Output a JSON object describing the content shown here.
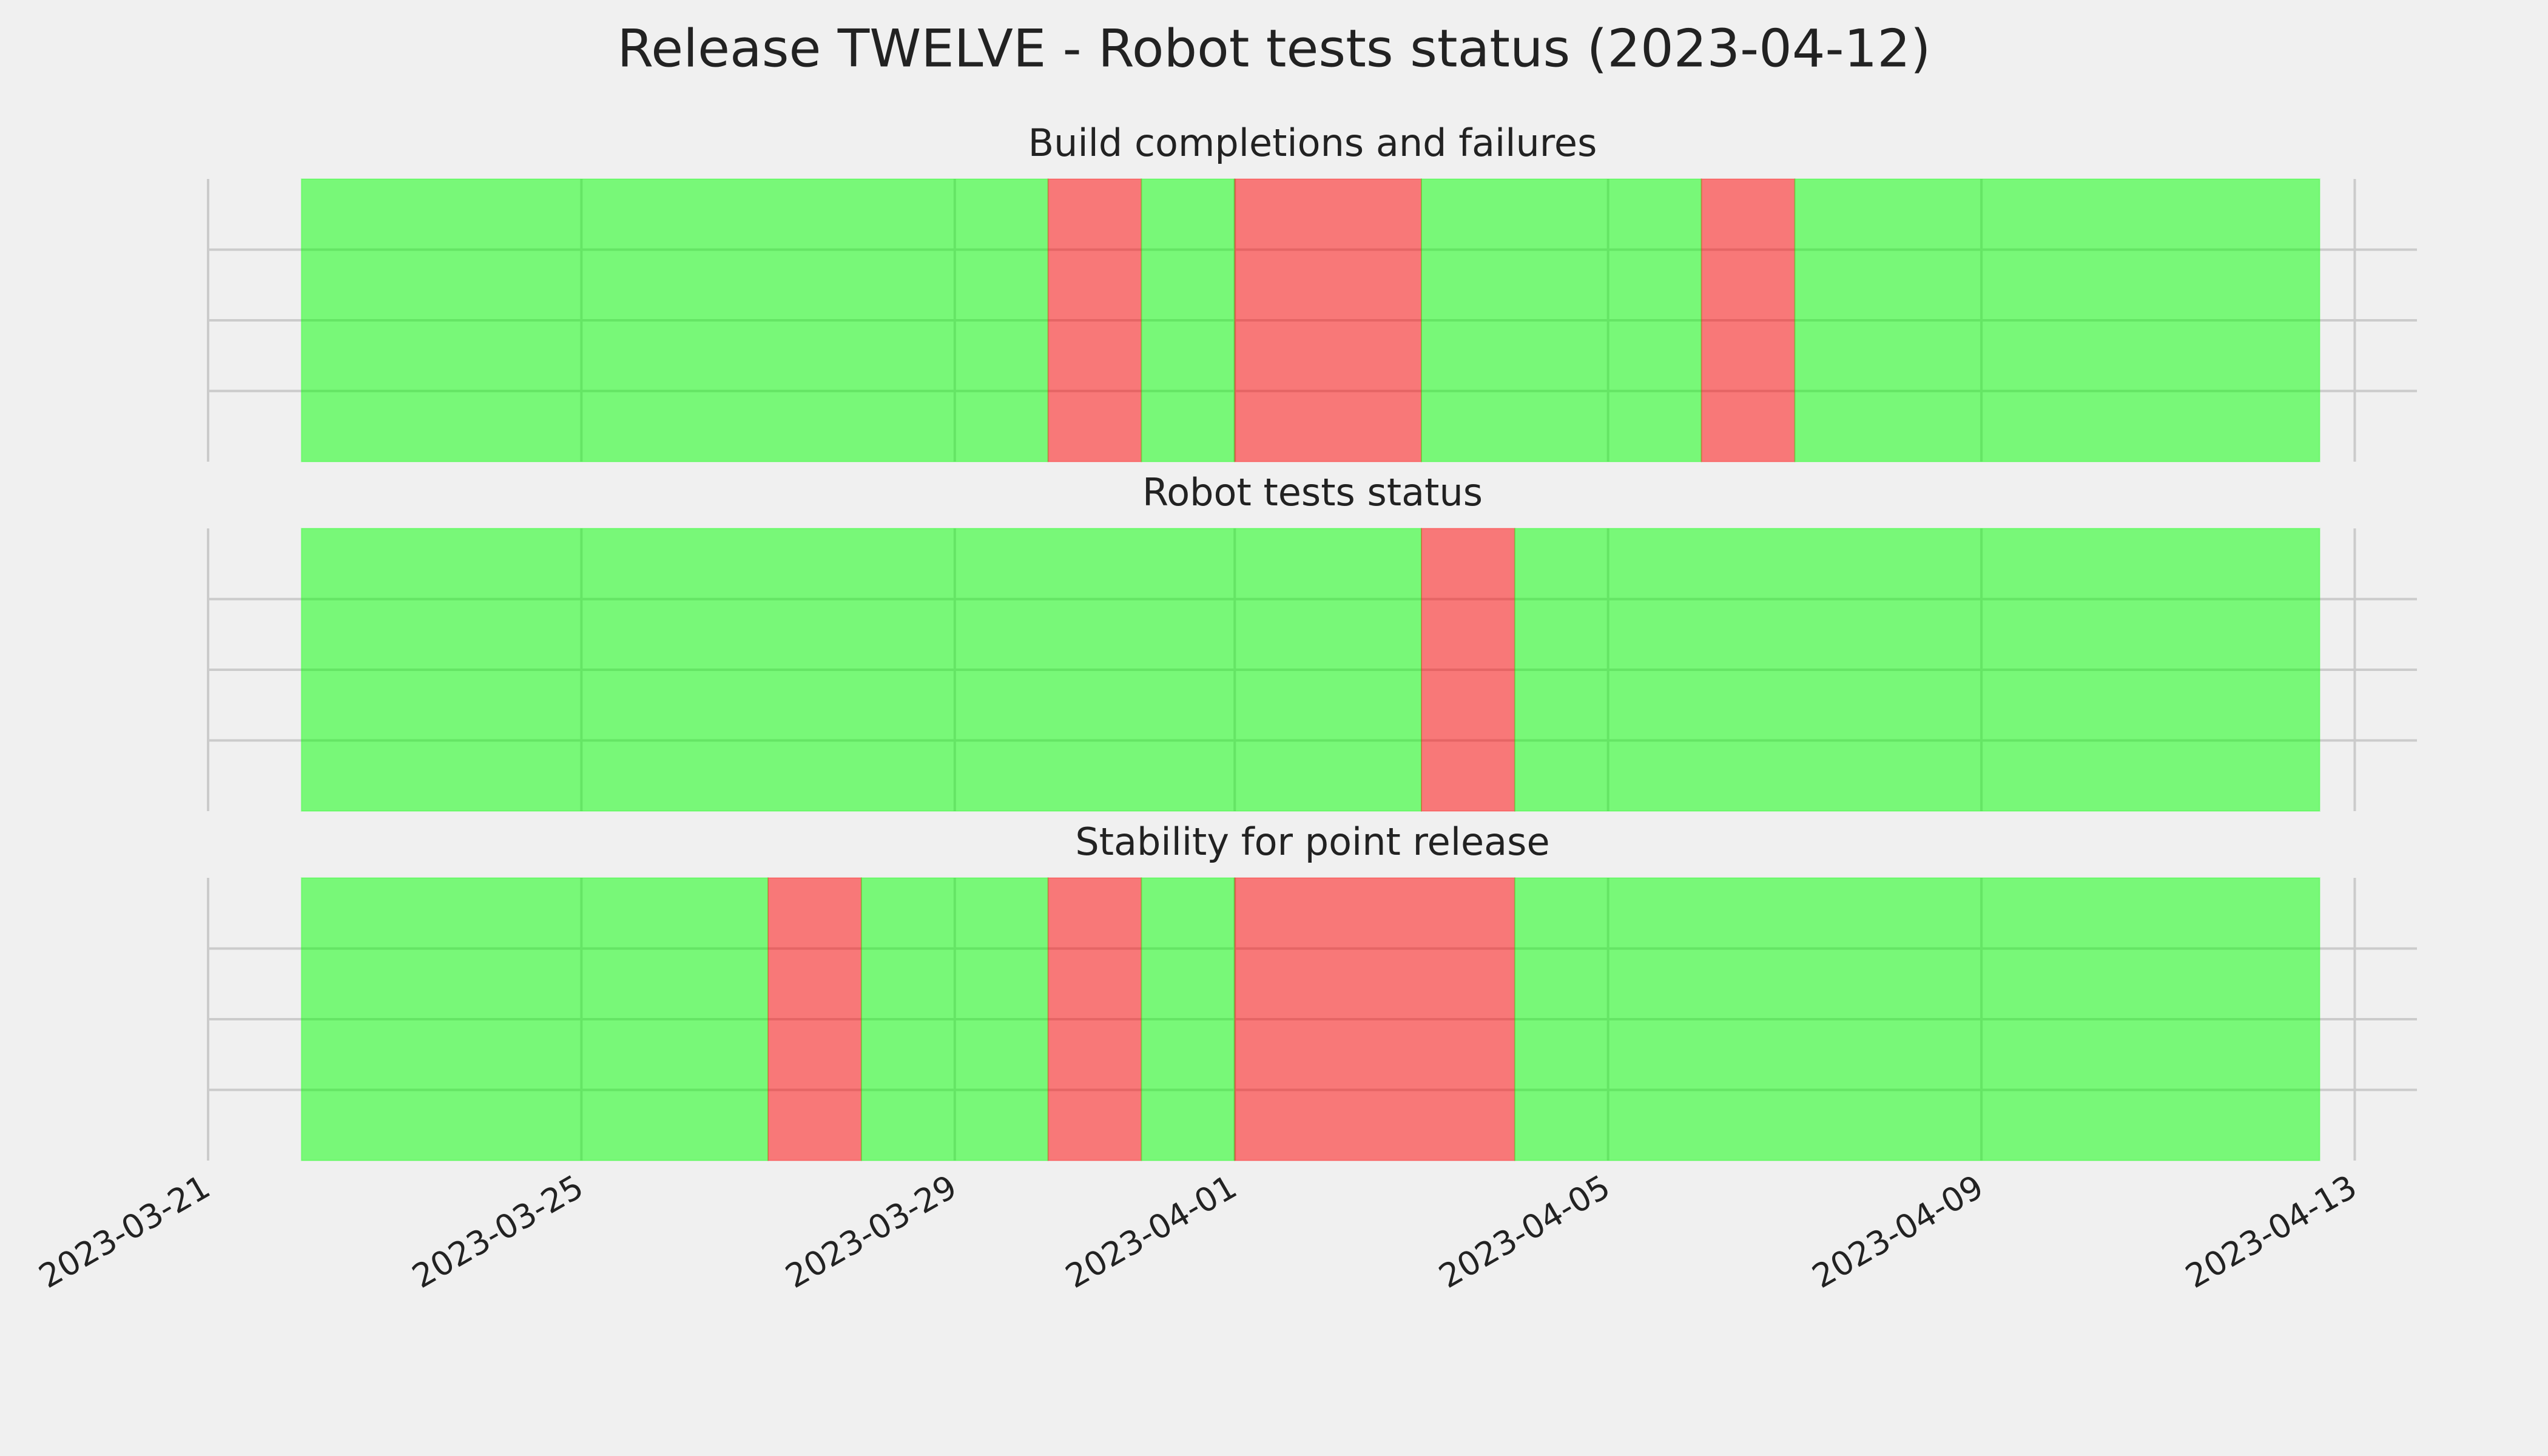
{
  "chart_data": {
    "type": "timeline",
    "title": "Release TWELVE - Robot tests status (2023-04-12)",
    "xlim": [
      "2023-03-21T00:00:00Z",
      "2023-04-13T16:00:00Z"
    ],
    "xticks": [
      "2023-03-21",
      "2023-03-25",
      "2023-03-29",
      "2023-04-01",
      "2023-04-05",
      "2023-04-09",
      "2023-04-13"
    ],
    "ylim": [
      0,
      1
    ],
    "yticks": [
      0.25,
      0.5,
      0.75
    ],
    "grid": true,
    "alpha": 0.5,
    "panels": [
      {
        "title": "Build completions and failures",
        "segments": [
          {
            "start": "2023-03-22",
            "end": "2023-03-30",
            "color": "#00ff00"
          },
          {
            "start": "2023-03-30",
            "end": "2023-03-31",
            "color": "#ff0000"
          },
          {
            "start": "2023-03-31",
            "end": "2023-04-01",
            "color": "#00ff00"
          },
          {
            "start": "2023-04-01",
            "end": "2023-04-03",
            "color": "#ff0000"
          },
          {
            "start": "2023-04-03",
            "end": "2023-04-06",
            "color": "#00ff00"
          },
          {
            "start": "2023-04-06",
            "end": "2023-04-07",
            "color": "#ff0000"
          },
          {
            "start": "2023-04-07",
            "end": "2023-04-12T15:00:00Z",
            "color": "#00ff00"
          }
        ]
      },
      {
        "title": "Robot tests status",
        "segments": [
          {
            "start": "2023-03-22",
            "end": "2023-04-03",
            "color": "#00ff00"
          },
          {
            "start": "2023-04-03",
            "end": "2023-04-04",
            "color": "#ff0000"
          },
          {
            "start": "2023-04-04",
            "end": "2023-04-12T15:00:00Z",
            "color": "#00ff00"
          }
        ]
      },
      {
        "title": "Stability for point release",
        "segments": [
          {
            "start": "2023-03-22",
            "end": "2023-03-27",
            "color": "#00ff00"
          },
          {
            "start": "2023-03-27",
            "end": "2023-03-28",
            "color": "#ff0000"
          },
          {
            "start": "2023-03-28",
            "end": "2023-03-30",
            "color": "#00ff00"
          },
          {
            "start": "2023-03-30",
            "end": "2023-03-31",
            "color": "#ff0000"
          },
          {
            "start": "2023-03-31",
            "end": "2023-04-01",
            "color": "#00ff00"
          },
          {
            "start": "2023-04-01",
            "end": "2023-04-04",
            "color": "#ff0000"
          },
          {
            "start": "2023-04-04",
            "end": "2023-04-12T15:00:00Z",
            "color": "#00ff00"
          }
        ]
      }
    ]
  }
}
